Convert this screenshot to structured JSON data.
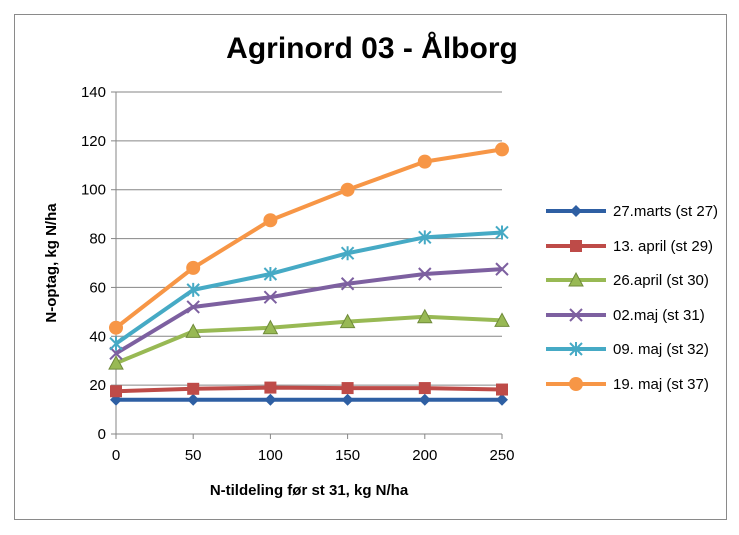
{
  "chart_data": {
    "type": "line",
    "title": "Agrinord 03 - Ålborg",
    "xlabel": "N-tildeling før st 31, kg N/ha",
    "ylabel": "N-optag, kg N/ha",
    "x": [
      0,
      50,
      100,
      150,
      200,
      250
    ],
    "xlim": [
      0,
      250
    ],
    "ylim": [
      0,
      140
    ],
    "xticks": [
      "0",
      "50",
      "100",
      "150",
      "200",
      "250"
    ],
    "yticks": [
      "0",
      "20",
      "40",
      "60",
      "80",
      "100",
      "120",
      "140"
    ],
    "grid": "horizontal",
    "legend_position": "right",
    "series": [
      {
        "name": "27.marts (st 27)",
        "color": "#2e5fa3",
        "marker": "diamond",
        "values": [
          14,
          14,
          14,
          14,
          14,
          14
        ]
      },
      {
        "name": "13. april (st 29)",
        "color": "#be4b48",
        "marker": "square",
        "values": [
          17.5,
          18.5,
          19,
          18.8,
          18.8,
          18.2
        ]
      },
      {
        "name": "26.april (st 30)",
        "color": "#98b954",
        "marker": "triangle",
        "values": [
          29,
          42,
          43.5,
          46,
          48,
          46.5
        ]
      },
      {
        "name": "02.maj (st 31)",
        "color": "#7d60a0",
        "marker": "x",
        "values": [
          33,
          52,
          56,
          61.5,
          65.5,
          67.5
        ]
      },
      {
        "name": "09. maj (st 32)",
        "color": "#46aac5",
        "marker": "star",
        "values": [
          37,
          59,
          65.5,
          74,
          80.5,
          82.5
        ]
      },
      {
        "name": "19. maj (st 37)",
        "color": "#f79646",
        "marker": "circle",
        "values": [
          43.5,
          68,
          87.5,
          100,
          111.5,
          116.5
        ]
      }
    ]
  }
}
